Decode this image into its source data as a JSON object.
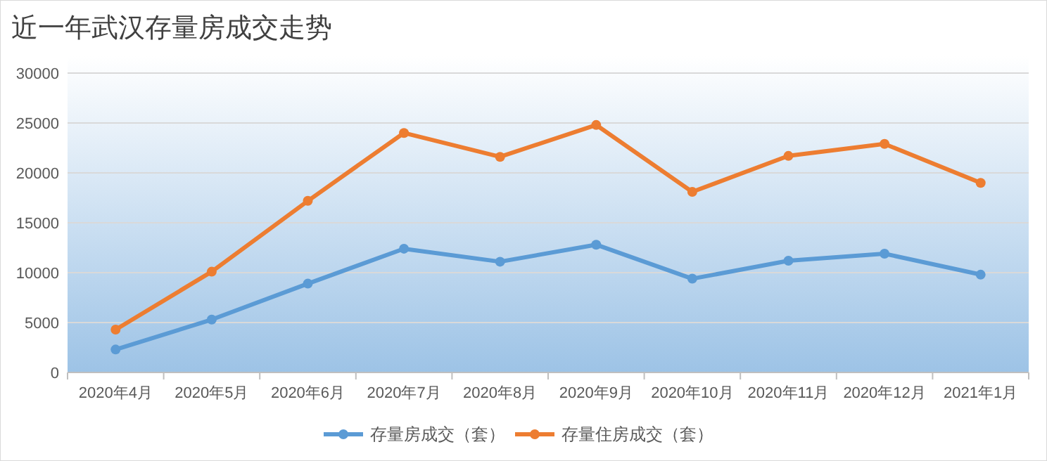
{
  "chart_data": {
    "type": "line",
    "title": "近一年武汉存量房成交走势",
    "categories": [
      "2020年4月",
      "2020年5月",
      "2020年6月",
      "2020年7月",
      "2020年8月",
      "2020年9月",
      "2020年10月",
      "2020年11月",
      "2020年12月",
      "2021年1月"
    ],
    "series": [
      {
        "name": "存量房成交（套）",
        "color": "#5b9bd5",
        "values": [
          2300,
          5300,
          8900,
          12400,
          11100,
          12800,
          9400,
          11200,
          11900,
          9800
        ]
      },
      {
        "name": "存量住房成交（套）",
        "color": "#ed7d31",
        "values": [
          4300,
          10100,
          17200,
          24000,
          21600,
          24800,
          18100,
          21700,
          22900,
          19000
        ]
      }
    ],
    "ylim": [
      0,
      30000
    ],
    "yticks": [
      0,
      5000,
      10000,
      15000,
      20000,
      25000,
      30000
    ],
    "grid": "y",
    "legend": "bottom",
    "marker": "circle",
    "line_style": "solid"
  }
}
